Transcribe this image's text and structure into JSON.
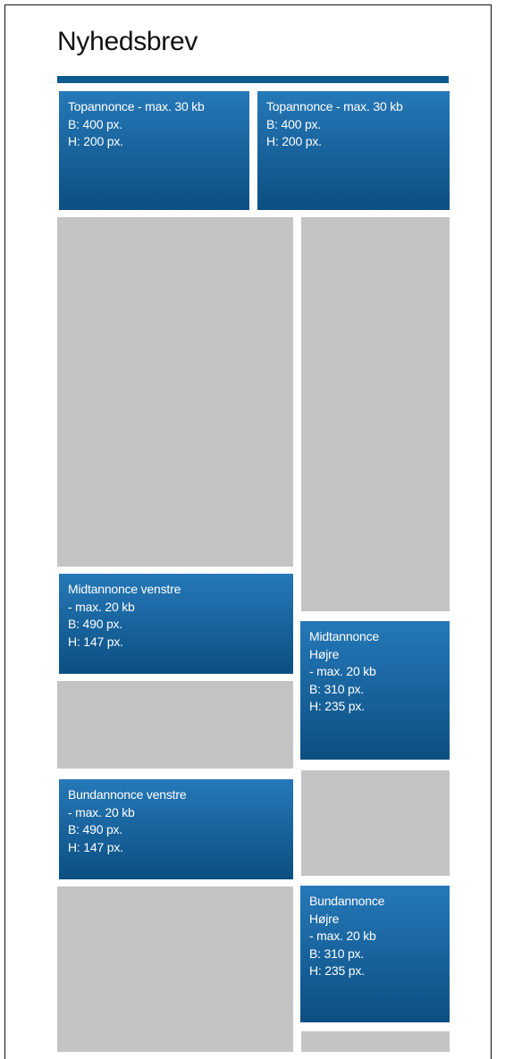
{
  "title": "Nyhedsbrev",
  "colors": {
    "accent": "#0d5a8f",
    "ad_top": "#2678b8",
    "ad_bottom": "#0b4f82",
    "placeholder": "#c4c4c4"
  },
  "ads": {
    "top_left": "Topannonce - max. 30 kb\nB: 400 px.\nH: 200 px.",
    "top_right": "Topannonce - max. 30 kb\nB: 400 px.\nH: 200 px.",
    "mid_left": "Midtannonce venstre\n- max. 20 kb\nB: 490 px.\nH: 147 px.",
    "mid_right": "Midtannonce\nHøjre\n- max. 20 kb\nB: 310 px.\nH: 235 px.",
    "bottom_left": "Bundannonce venstre\n- max. 20 kb\nB: 490 px.\nH: 147 px.",
    "bottom_right": "Bundannonce\nHøjre\n- max. 20 kb\nB: 310 px.\nH: 235 px."
  }
}
